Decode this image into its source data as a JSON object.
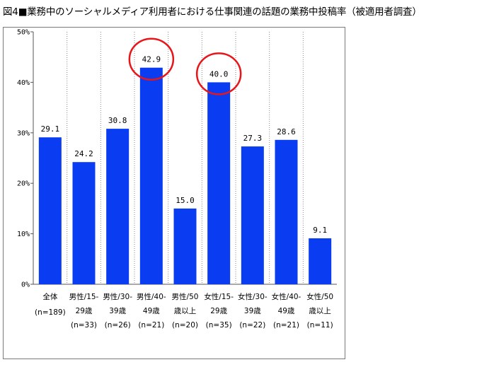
{
  "title": "図4■業務中のソーシャルメディア利用者における仕事関連の話題の業務中投稿率（被適用者調査）",
  "colors": {
    "bar": "#0a3df2",
    "highlight": "#e8161a",
    "grid": "#888888"
  },
  "chart_data": {
    "type": "bar",
    "categories": [
      [
        "全体",
        "(n=189)"
      ],
      [
        "男性/15-",
        "29歳",
        "(n=33)"
      ],
      [
        "男性/30-",
        "39歳",
        "(n=26)"
      ],
      [
        "男性/40-",
        "49歳",
        "(n=21)"
      ],
      [
        "男性/50",
        "歳以上",
        "(n=20)"
      ],
      [
        "女性/15-",
        "29歳",
        "(n=35)"
      ],
      [
        "女性/30-",
        "39歳",
        "(n=22)"
      ],
      [
        "女性/40-",
        "49歳",
        "(n=21)"
      ],
      [
        "女性/50",
        "歳以上",
        "(n=11)"
      ]
    ],
    "values": [
      29.1,
      24.2,
      30.8,
      42.9,
      15.0,
      40.0,
      27.3,
      28.6,
      9.1
    ],
    "value_labels": [
      "29.1",
      "24.2",
      "30.8",
      "42.9",
      "15.0",
      "40.0",
      "27.3",
      "28.6",
      "9.1"
    ],
    "highlighted": [
      3,
      5
    ],
    "ylim": [
      0,
      50
    ],
    "yticks": [
      "0%",
      "10%",
      "20%",
      "30%",
      "40%",
      "50%"
    ],
    "grid": "vertical dotted separators"
  }
}
